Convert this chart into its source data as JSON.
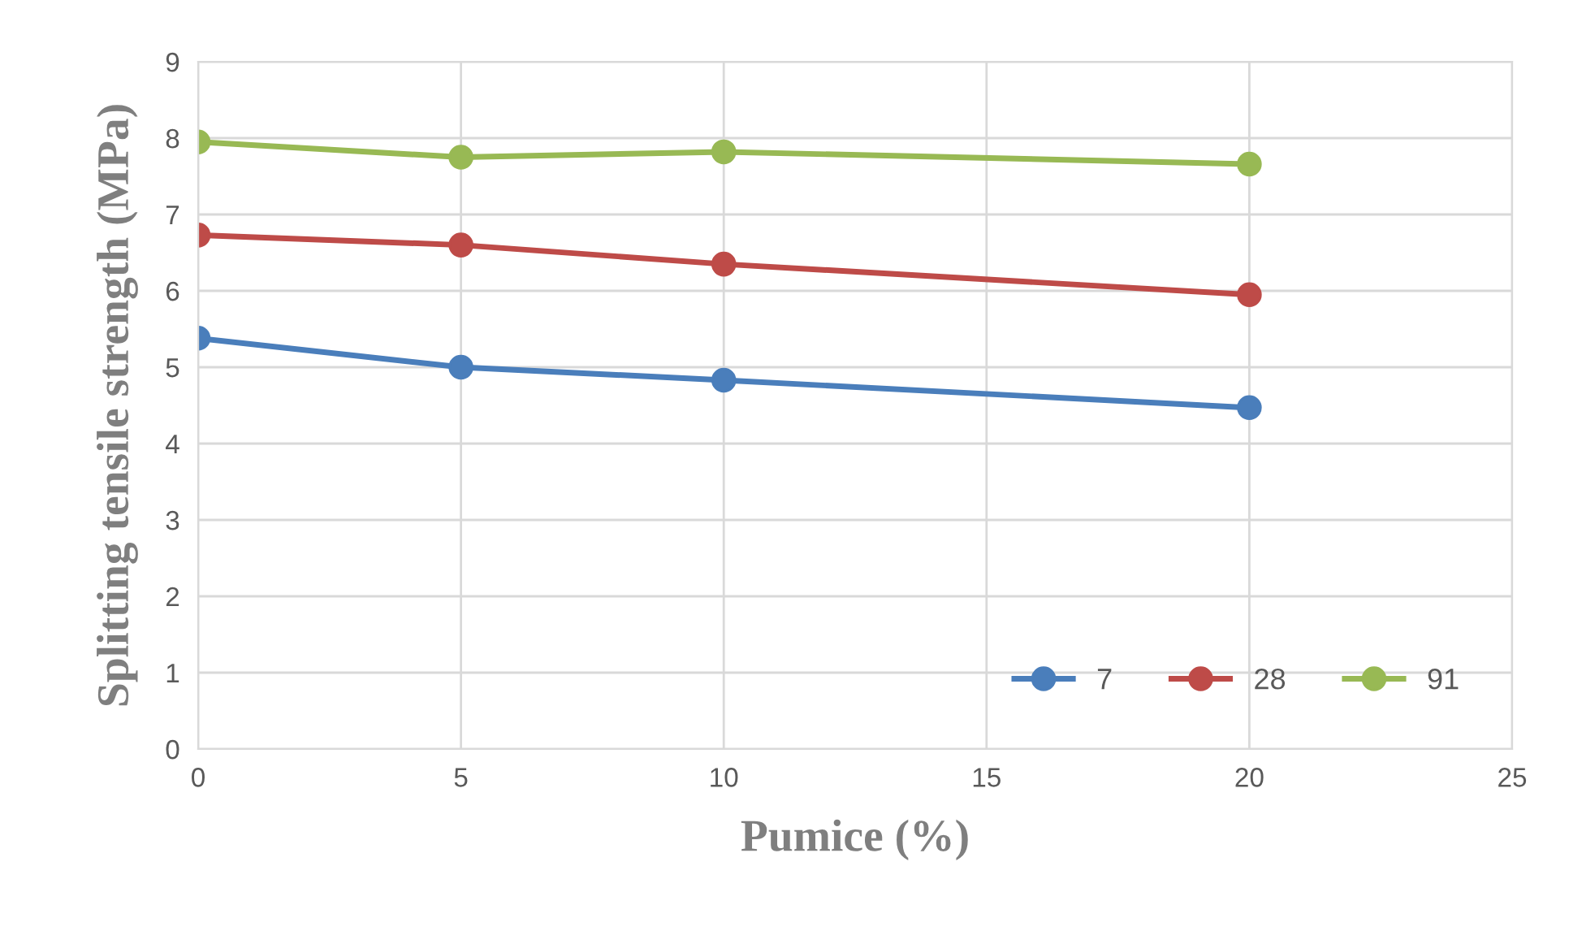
{
  "chart_data": {
    "type": "line",
    "xlabel": "Pumice (%)",
    "ylabel": "Splitting tensile strength (MPa)",
    "x": [
      0,
      5,
      10,
      20
    ],
    "series": [
      {
        "name": "7",
        "color": "#4a7ebb",
        "values": [
          5.38,
          5.0,
          4.83,
          4.47
        ]
      },
      {
        "name": "28",
        "color": "#be4b48",
        "values": [
          6.73,
          6.6,
          6.35,
          5.95
        ]
      },
      {
        "name": "91",
        "color": "#98b954",
        "values": [
          7.95,
          7.75,
          7.82,
          7.66
        ]
      }
    ],
    "xlim": [
      0,
      25
    ],
    "xticks": [
      0,
      5,
      10,
      15,
      20,
      25
    ],
    "ylim": [
      0,
      9
    ],
    "yticks": [
      0,
      1,
      2,
      3,
      4,
      5,
      6,
      7,
      8,
      9
    ],
    "grid": true,
    "legend": "bottom right",
    "marker": "circle",
    "line_style": "solid"
  }
}
